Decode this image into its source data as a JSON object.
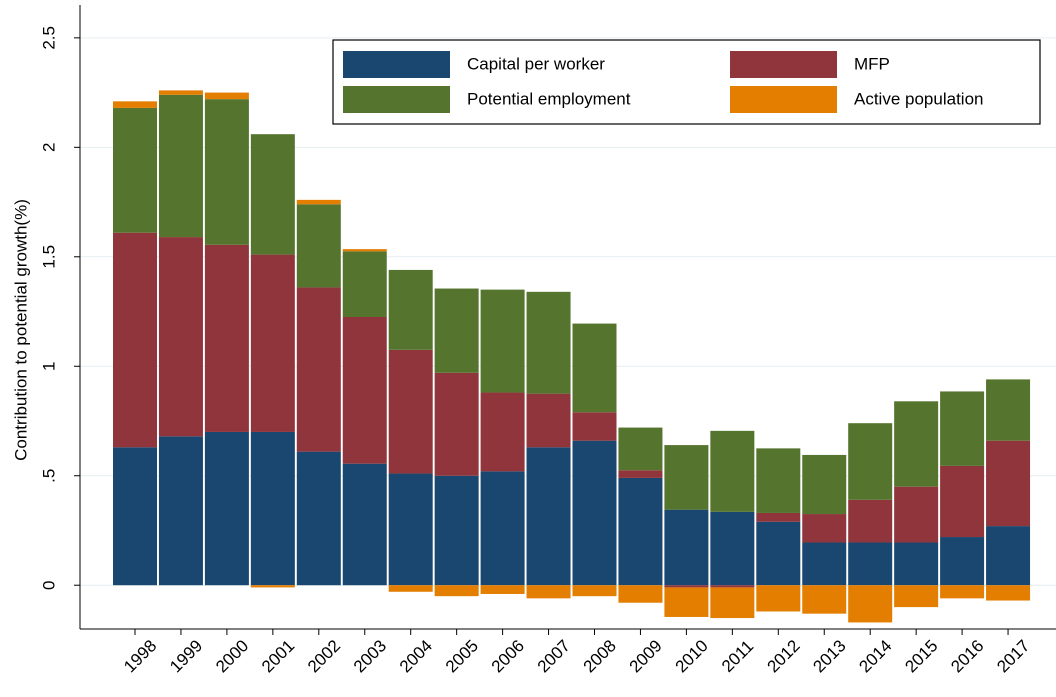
{
  "chart_data": {
    "type": "bar",
    "stacked": true,
    "y_label": "Contribution to potential growth(%)",
    "categories": [
      "1998",
      "1999",
      "2000",
      "2001",
      "2002",
      "2003",
      "2004",
      "2005",
      "2006",
      "2007",
      "2008",
      "2009",
      "2010",
      "2011",
      "2012",
      "2013",
      "2014",
      "2015",
      "2016",
      "2017"
    ],
    "series": [
      {
        "name": "Capital per worker",
        "color": "#1a476f",
        "values": [
          0.63,
          0.68,
          0.7,
          0.7,
          0.61,
          0.555,
          0.51,
          0.5,
          0.52,
          0.63,
          0.66,
          0.49,
          0.345,
          0.335,
          0.29,
          0.195,
          0.195,
          0.195,
          0.22,
          0.27
        ]
      },
      {
        "name": "MFP",
        "color": "#90353b",
        "values": [
          0.98,
          0.91,
          0.855,
          0.81,
          0.75,
          0.67,
          0.565,
          0.47,
          0.36,
          0.245,
          0.13,
          0.035,
          -0.01,
          -0.01,
          0.04,
          0.13,
          0.195,
          0.255,
          0.325,
          0.39
        ]
      },
      {
        "name": "Potential employment",
        "color": "#55752f",
        "values": [
          0.57,
          0.65,
          0.665,
          0.55,
          0.38,
          0.3,
          0.365,
          0.385,
          0.47,
          0.465,
          0.405,
          0.195,
          0.295,
          0.37,
          0.295,
          0.27,
          0.35,
          0.39,
          0.34,
          0.28
        ]
      },
      {
        "name": "Active population",
        "color": "#e37e00",
        "values": [
          0.03,
          0.02,
          0.03,
          -0.01,
          0.02,
          0.01,
          -0.03,
          -0.05,
          -0.04,
          -0.06,
          -0.05,
          -0.08,
          -0.135,
          -0.14,
          -0.12,
          -0.13,
          -0.17,
          -0.1,
          -0.06,
          -0.07
        ]
      }
    ],
    "ylim": [
      -0.2,
      2.65
    ],
    "yticks": [
      0,
      {
        "value": 0.5,
        "label": ".5"
      },
      1,
      1.5,
      2,
      2.5
    ],
    "grid": true
  }
}
